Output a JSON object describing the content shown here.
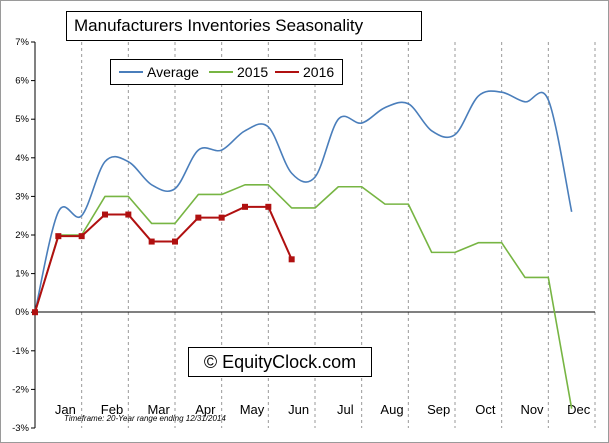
{
  "chart_data": {
    "type": "line",
    "title": "Manufacturers Inventories Seasonality",
    "xlabel": "",
    "ylabel": "",
    "categories": [
      "Jan",
      "Feb",
      "Mar",
      "Apr",
      "May",
      "Jun",
      "Jul",
      "Aug",
      "Sep",
      "Oct",
      "Nov",
      "Dec"
    ],
    "y_ticks": [
      "7%",
      "6%",
      "5%",
      "4%",
      "3%",
      "2%",
      "1%",
      "0%",
      "-1%",
      "-2%",
      "-3%"
    ],
    "ylim": [
      -3,
      7
    ],
    "grid": "vertical",
    "legend_position": "top-left",
    "series": [
      {
        "name": "Average",
        "color": "#4a7ebb",
        "marker": "none",
        "x": [
          0,
          0.5,
          1,
          1.5,
          2,
          2.5,
          3,
          3.5,
          4,
          4.5,
          5,
          5.5,
          6,
          6.5,
          7,
          7.5,
          8,
          8.5,
          9,
          9.5,
          10,
          10.5,
          11,
          11.5
        ],
        "values": [
          0,
          2.6,
          2.5,
          3.9,
          3.9,
          3.3,
          3.2,
          4.2,
          4.2,
          4.7,
          4.8,
          3.6,
          3.5,
          5.0,
          4.9,
          5.3,
          5.4,
          4.7,
          4.6,
          5.6,
          5.7,
          5.45,
          5.5,
          2.6
        ]
      },
      {
        "name": "2015",
        "color": "#77b543",
        "marker": "none",
        "x": [
          0,
          0.5,
          1,
          1.5,
          2,
          2.5,
          3,
          3.5,
          4,
          4.5,
          5,
          5.5,
          6,
          6.5,
          7,
          7.5,
          8,
          8.5,
          9,
          9.5,
          10,
          10.5,
          11,
          11.5
        ],
        "values": [
          0,
          2,
          2,
          3,
          3,
          2.3,
          2.3,
          3.05,
          3.05,
          3.3,
          3.3,
          2.7,
          2.7,
          3.25,
          3.25,
          2.8,
          2.8,
          1.55,
          1.55,
          1.8,
          1.8,
          0.9,
          0.9,
          -2.5
        ]
      },
      {
        "name": "2016",
        "color": "#b01010",
        "marker": "square",
        "x": [
          0,
          0.5,
          1,
          1.5,
          2,
          2.5,
          3,
          3.5,
          4,
          4.5,
          5,
          5.5
        ],
        "values": [
          0,
          1.97,
          1.97,
          2.53,
          2.53,
          1.83,
          1.83,
          2.45,
          2.45,
          2.73,
          2.73,
          1.37
        ]
      }
    ],
    "watermark": "© EquityClock.com",
    "footnote": "Timeframe: 20-Year range ending 12/31/2014"
  }
}
